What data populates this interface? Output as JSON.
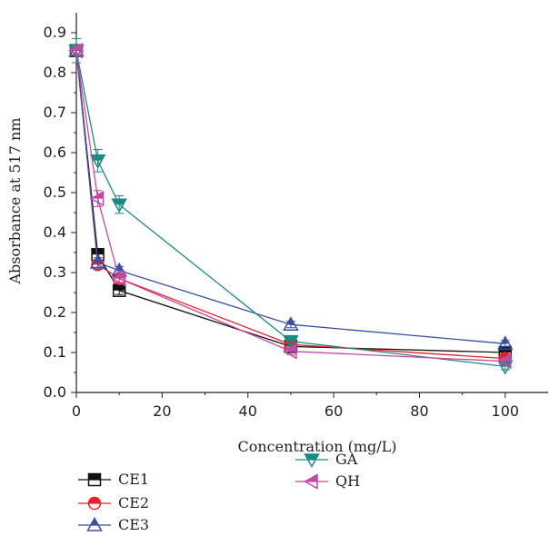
{
  "chart_data": {
    "type": "line",
    "xlabel": "Concentration (mg/L)",
    "ylabel": "Absorbance at 517 nm",
    "xlim": [
      0,
      110
    ],
    "ylim": [
      0,
      0.95
    ],
    "x_ticks": [
      0,
      20,
      40,
      60,
      80,
      100
    ],
    "y_ticks": [
      0.0,
      0.1,
      0.2,
      0.3,
      0.4,
      0.5,
      0.6,
      0.7,
      0.8,
      0.9
    ],
    "x_tick_labels": [
      "0",
      "20",
      "40",
      "60",
      "80",
      "100"
    ],
    "y_tick_labels": [
      "0.0",
      "0.1",
      "0.2",
      "0.3",
      "0.4",
      "0.5",
      "0.6",
      "0.7",
      "0.8",
      "0.9"
    ],
    "grid": false,
    "legend_position": "below",
    "x": [
      0,
      5,
      10,
      50,
      100
    ],
    "series": [
      {
        "name": "CE1",
        "marker": "square",
        "color": "#111111",
        "values": [
          0.855,
          0.345,
          0.255,
          0.115,
          0.1
        ],
        "errors": [
          0.01,
          0.015,
          0.01,
          0.008,
          0.008
        ]
      },
      {
        "name": "CE2",
        "marker": "circle",
        "color": "#e8212a",
        "values": [
          0.855,
          0.32,
          0.285,
          0.12,
          0.085
        ],
        "errors": [
          0.01,
          0.012,
          0.01,
          0.008,
          0.008
        ]
      },
      {
        "name": "CE3",
        "marker": "triangle-up",
        "color": "#3b4ea6",
        "values": [
          0.855,
          0.325,
          0.305,
          0.17,
          0.122
        ],
        "errors": [
          0.01,
          0.012,
          0.01,
          0.008,
          0.008
        ]
      },
      {
        "name": "GA",
        "marker": "triangle-down",
        "color": "#1b8a82",
        "values": [
          0.855,
          0.58,
          0.47,
          0.128,
          0.065
        ],
        "errors": [
          0.03,
          0.028,
          0.022,
          0.01,
          0.008
        ]
      },
      {
        "name": "QH",
        "marker": "triangle-left",
        "color": "#c24aa5",
        "values": [
          0.855,
          0.485,
          0.285,
          0.103,
          0.078
        ],
        "errors": [
          0.01,
          0.02,
          0.012,
          0.008,
          0.008
        ]
      }
    ]
  }
}
